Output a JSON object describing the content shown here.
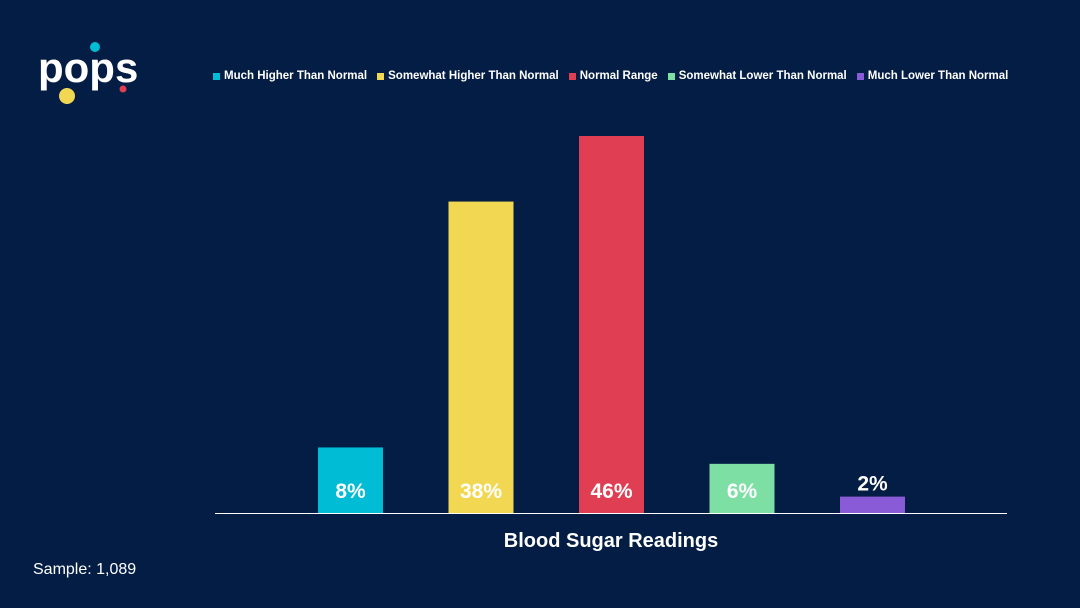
{
  "logo": {
    "text": "pops",
    "dot_colors": [
      "#00bcd4",
      "#f2d852",
      "#e03e52"
    ]
  },
  "chart_data": {
    "type": "bar",
    "title": "",
    "xlabel": "Blood Sugar Readings",
    "ylabel": "",
    "ylim": [
      0,
      46
    ],
    "grid": false,
    "legend_position": "top",
    "categories": [
      "Much Higher Than Normal",
      "Somewhat Higher Than Normal",
      "Normal Range",
      "Somewhat Lower Than Normal",
      "Much Lower Than Normal"
    ],
    "values": [
      8,
      38,
      46,
      6,
      2
    ],
    "data_labels": [
      "8%",
      "38%",
      "46%",
      "6%",
      "2%"
    ],
    "colors": [
      "#00bcd4",
      "#f2d852",
      "#e03e52",
      "#7ddfa4",
      "#8a5bd6"
    ]
  },
  "footer": {
    "sample": "Sample: 1,089"
  },
  "theme": {
    "background": "#031d44",
    "axis_line": "#ffffff",
    "text": "#ffffff"
  }
}
